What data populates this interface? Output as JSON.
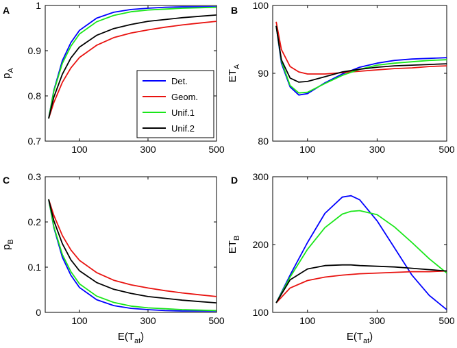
{
  "figure": {
    "xlabel_main": "E(T",
    "xlabel_sub": "at",
    "xlabel_close": ")"
  },
  "legend": {
    "entries": [
      {
        "name": "Det.",
        "color": "#0000ff"
      },
      {
        "name": "Geom.",
        "color": "#e8120f"
      },
      {
        "name": "Unif.1",
        "color": "#19e619"
      },
      {
        "name": "Unif.2",
        "color": "#000000"
      }
    ]
  },
  "chart_data": [
    {
      "panel": "A",
      "type": "line",
      "ylabel_main": "p",
      "ylabel_sub": "A",
      "xlim": [
        0,
        500
      ],
      "ylim": [
        0.7,
        1.0
      ],
      "xticks": [
        "100",
        "300",
        "500"
      ],
      "xtick_values": [
        100,
        300,
        500
      ],
      "yticks": [
        "0.7",
        "0.8",
        "0.9",
        "1"
      ],
      "ytick_values": [
        0.7,
        0.8,
        0.9,
        1.0
      ],
      "x": [
        10,
        25,
        50,
        75,
        100,
        150,
        200,
        250,
        300,
        350,
        400,
        450,
        500
      ],
      "series": [
        {
          "name": "Det.",
          "color": "#0000ff",
          "values": [
            0.75,
            0.812,
            0.878,
            0.918,
            0.945,
            0.972,
            0.985,
            0.991,
            0.994,
            0.996,
            0.997,
            0.997,
            0.997
          ]
        },
        {
          "name": "Geom.",
          "color": "#e8120f",
          "values": [
            0.75,
            0.785,
            0.83,
            0.862,
            0.885,
            0.912,
            0.929,
            0.939,
            0.946,
            0.952,
            0.957,
            0.961,
            0.965
          ]
        },
        {
          "name": "Unif.1",
          "color": "#19e619",
          "values": [
            0.75,
            0.81,
            0.872,
            0.91,
            0.937,
            0.964,
            0.978,
            0.986,
            0.99,
            0.992,
            0.994,
            0.995,
            0.996
          ]
        },
        {
          "name": "Unif.2",
          "color": "#000000",
          "values": [
            0.75,
            0.797,
            0.848,
            0.884,
            0.908,
            0.934,
            0.949,
            0.958,
            0.965,
            0.969,
            0.973,
            0.976,
            0.979
          ]
        }
      ]
    },
    {
      "panel": "B",
      "type": "line",
      "ylabel_main": "ET",
      "ylabel_sub": "A",
      "xlim": [
        0,
        500
      ],
      "ylim": [
        80,
        100
      ],
      "xticks": [
        "100",
        "300",
        "500"
      ],
      "xtick_values": [
        100,
        300,
        500
      ],
      "yticks": [
        "80",
        "90",
        "100"
      ],
      "ytick_values": [
        80,
        90,
        100
      ],
      "x": [
        10,
        25,
        50,
        75,
        100,
        150,
        200,
        250,
        300,
        350,
        400,
        450,
        500
      ],
      "series": [
        {
          "name": "Det.",
          "color": "#0000ff",
          "values": [
            97,
            91.5,
            88.0,
            86.8,
            87.0,
            88.6,
            89.9,
            90.9,
            91.5,
            91.9,
            92.1,
            92.2,
            92.3
          ]
        },
        {
          "name": "Geom.",
          "color": "#e8120f",
          "values": [
            97.6,
            93.5,
            91.0,
            90.2,
            89.9,
            89.9,
            90.1,
            90.3,
            90.5,
            90.7,
            90.8,
            91.0,
            91.1
          ]
        },
        {
          "name": "Unif.1",
          "color": "#19e619",
          "values": [
            97,
            91.8,
            88.2,
            87.1,
            87.2,
            88.5,
            89.7,
            90.6,
            91.2,
            91.5,
            91.7,
            91.9,
            92.0
          ]
        },
        {
          "name": "Unif.2",
          "color": "#000000",
          "values": [
            97,
            92.0,
            89.3,
            88.7,
            88.8,
            89.5,
            90.2,
            90.6,
            90.9,
            91.1,
            91.2,
            91.3,
            91.4
          ]
        }
      ]
    },
    {
      "panel": "C",
      "type": "line",
      "ylabel_main": "p",
      "ylabel_sub": "B",
      "xlim": [
        0,
        500
      ],
      "ylim": [
        0,
        0.3
      ],
      "xticks": [
        "100",
        "300",
        "500"
      ],
      "xtick_values": [
        100,
        300,
        500
      ],
      "yticks": [
        "0",
        "0.1",
        "0.2",
        "0.3"
      ],
      "ytick_values": [
        0,
        0.1,
        0.2,
        0.3
      ],
      "x": [
        10,
        25,
        50,
        75,
        100,
        150,
        200,
        250,
        300,
        350,
        400,
        450,
        500
      ],
      "series": [
        {
          "name": "Det.",
          "color": "#0000ff",
          "values": [
            0.25,
            0.188,
            0.122,
            0.082,
            0.055,
            0.028,
            0.015,
            0.009,
            0.006,
            0.004,
            0.003,
            0.003,
            0.003
          ]
        },
        {
          "name": "Geom.",
          "color": "#e8120f",
          "values": [
            0.25,
            0.215,
            0.17,
            0.138,
            0.115,
            0.088,
            0.071,
            0.061,
            0.054,
            0.048,
            0.043,
            0.039,
            0.035
          ]
        },
        {
          "name": "Unif.1",
          "color": "#19e619",
          "values": [
            0.25,
            0.19,
            0.128,
            0.09,
            0.063,
            0.036,
            0.022,
            0.014,
            0.01,
            0.008,
            0.006,
            0.005,
            0.004
          ]
        },
        {
          "name": "Unif.2",
          "color": "#000000",
          "values": [
            0.25,
            0.203,
            0.152,
            0.116,
            0.092,
            0.066,
            0.051,
            0.042,
            0.035,
            0.031,
            0.027,
            0.024,
            0.021
          ]
        }
      ]
    },
    {
      "panel": "D",
      "type": "line",
      "ylabel_main": "ET",
      "ylabel_sub": "B",
      "xlim": [
        0,
        500
      ],
      "ylim": [
        100,
        300
      ],
      "xticks": [
        "100",
        "300",
        "500"
      ],
      "xtick_values": [
        100,
        300,
        500
      ],
      "yticks": [
        "100",
        "200",
        "300"
      ],
      "ytick_values": [
        100,
        200,
        300
      ],
      "x": [
        10,
        50,
        100,
        150,
        200,
        225,
        250,
        300,
        350,
        400,
        450,
        500
      ],
      "series": [
        {
          "name": "Det.",
          "color": "#0000ff",
          "values": [
            114,
            155,
            203,
            246,
            270,
            272,
            266,
            235,
            195,
            155,
            125,
            104
          ]
        },
        {
          "name": "Geom.",
          "color": "#e8120f",
          "values": [
            114,
            136,
            147,
            152,
            155,
            156,
            157,
            158,
            159,
            160,
            160,
            161
          ]
        },
        {
          "name": "Unif.1",
          "color": "#19e619",
          "values": [
            114,
            152,
            193,
            225,
            245,
            249,
            250,
            244,
            226,
            203,
            179,
            158
          ]
        },
        {
          "name": "Unif.2",
          "color": "#000000",
          "values": [
            114,
            148,
            164,
            169,
            170,
            170,
            169,
            168,
            167,
            165,
            163,
            161
          ]
        }
      ]
    }
  ]
}
